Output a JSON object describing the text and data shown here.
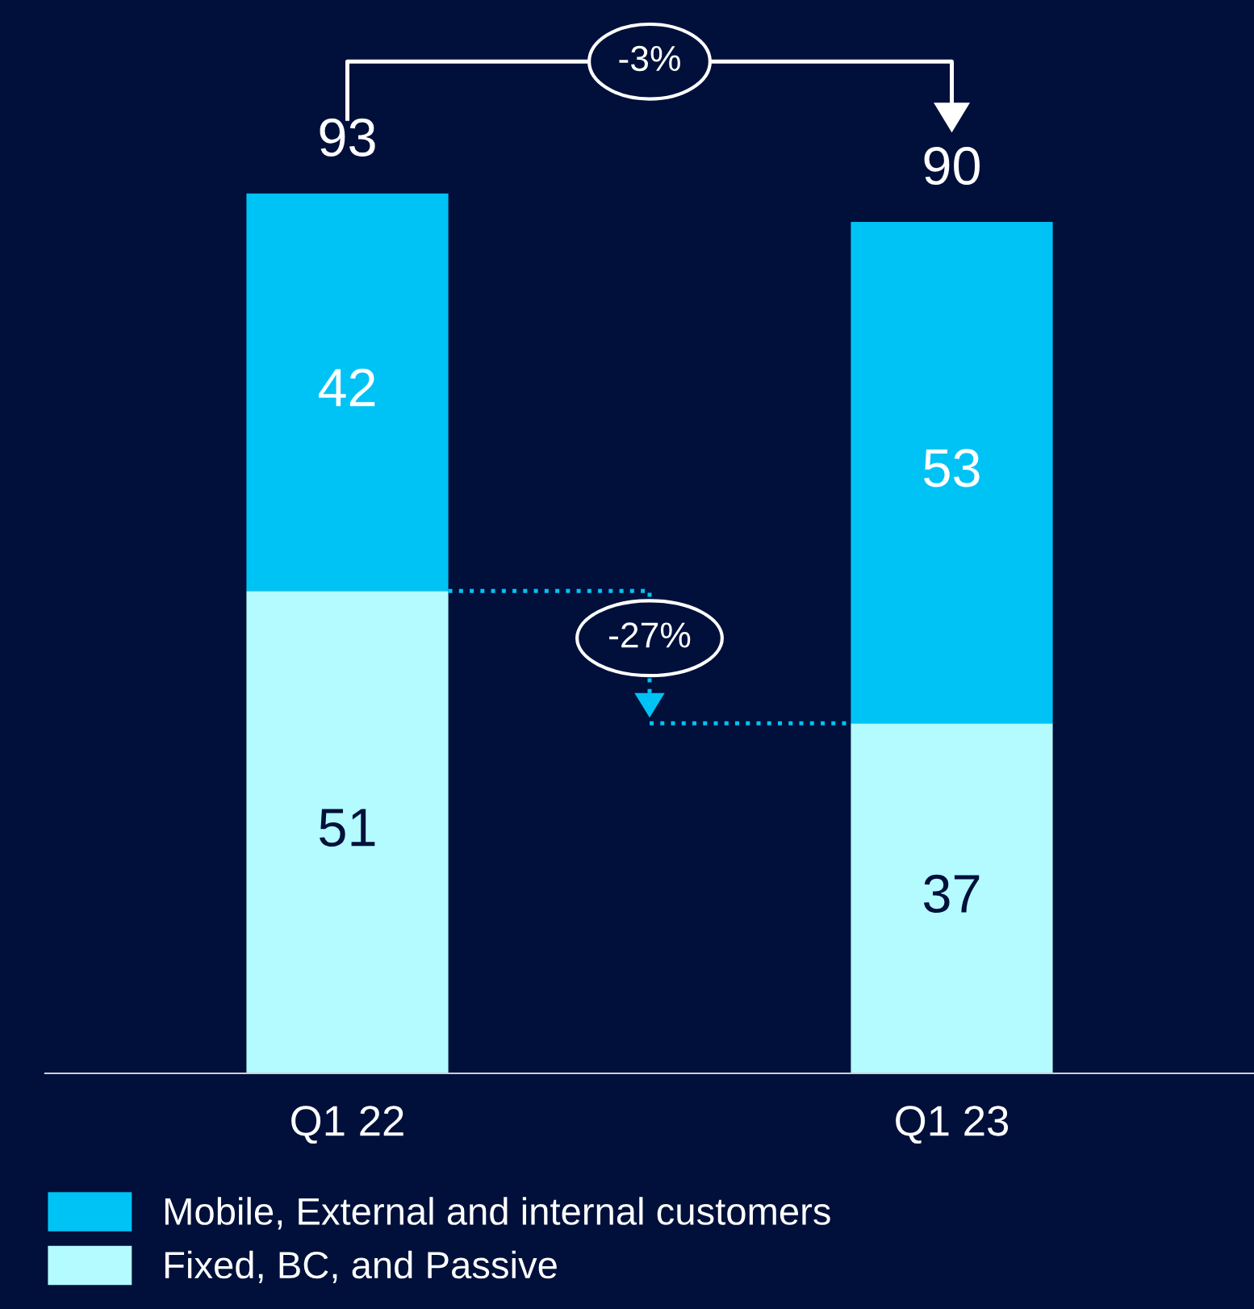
{
  "chart_data": {
    "type": "bar",
    "stacked": true,
    "categories": [
      "Q1 22",
      "Q1 23"
    ],
    "series": [
      {
        "name": "Fixed, BC, and Passive",
        "color": "#b3fbff",
        "values": [
          51,
          37
        ]
      },
      {
        "name": "Mobile, External and internal customers",
        "color": "#00c3f5",
        "values": [
          42,
          53
        ]
      }
    ],
    "totals": [
      "93",
      "90"
    ],
    "data_labels": true,
    "legend": "bottom left",
    "annotations": [
      "-3%",
      "-27%"
    ]
  }
}
